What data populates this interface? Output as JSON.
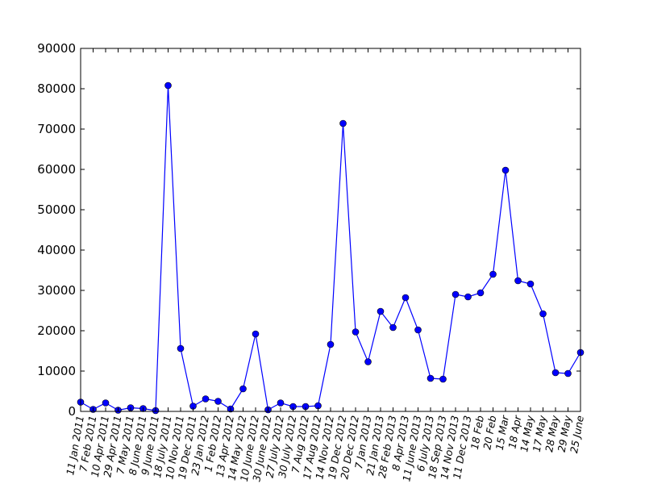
{
  "chart_data": {
    "type": "line",
    "title": "",
    "xlabel": "",
    "ylabel": "",
    "ylim": [
      0,
      90000
    ],
    "yticks": [
      0,
      10000,
      20000,
      30000,
      40000,
      50000,
      60000,
      70000,
      80000,
      90000
    ],
    "grid": false,
    "legend": "none",
    "colors": {
      "series": "#0000ff",
      "axes": "#000000",
      "background": "#ffffff"
    },
    "marker": "circle",
    "categories": [
      "11 Jan 2011",
      "7 Feb 2011",
      "10 Apr 2011",
      "29 Apr 2011",
      "7 May 2011",
      "8 June 2011",
      "9 June 2011",
      "18 July 2011",
      "10 Nov 2011",
      "19 Dec 2011",
      "23 Jan 2012",
      "1 Feb 2012",
      "13 Apr 2012",
      "14 May 2012",
      "10 June 2012",
      "30 June 2012",
      "27 July 2012",
      "30 July 2012",
      "7 Aug 2012",
      "17 Aug 2012",
      "14 Nov 2012",
      "19 Dec 2012",
      "20 Dec 2012",
      "7 Jan 2013",
      "21 Jan 2013",
      "28 Feb 2013",
      "8 Apr 2013",
      "11 June 2013",
      "6 July 2013",
      "18 Sep 2013",
      "14 Nov 2013",
      "11 Dec 2013",
      "18 Feb",
      "20 Feb",
      "15 Mar",
      "18 Apr",
      "14 May",
      "17 May",
      "28 May",
      "29 May",
      "25 June"
    ],
    "series": [
      {
        "name": "",
        "values": [
          2300,
          500,
          2100,
          300,
          900,
          700,
          200,
          80800,
          15600,
          1300,
          3100,
          2500,
          600,
          5600,
          19200,
          400,
          2100,
          1200,
          1200,
          1400,
          16600,
          71400,
          19700,
          12300,
          24800,
          20800,
          28200,
          20200,
          8200,
          8000,
          29000,
          28400,
          29400,
          34000,
          59800,
          32400,
          31600,
          24200,
          9600,
          9400,
          14600
        ]
      }
    ]
  }
}
